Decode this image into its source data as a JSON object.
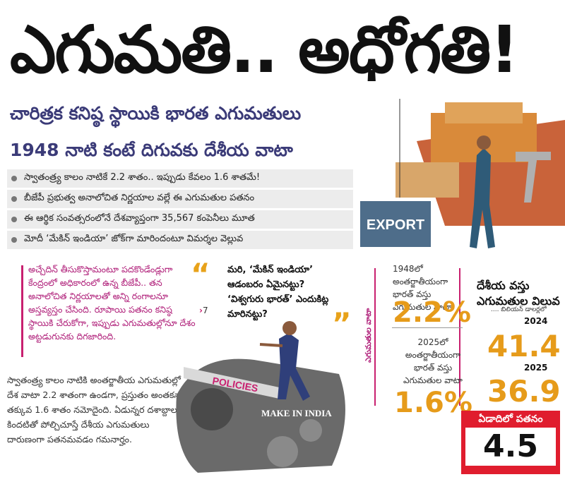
{
  "headline": "ఎగుమతి.. అధోగతి!",
  "subheads": [
    "చారిత్రక కనిష్ఠ స్థాయికి భారత ఎగుమతులు",
    "1948 నాటి కంటే దిగువకు దేశీయ వాటా"
  ],
  "bullets": [
    "స్వాతంత్ర్య కాలం నాటికే 2.2 శాతం.. ఇప్పుడు కేవలం 1.6 శాతమే!",
    "బీజేపీ ప్రభుత్వ అనాలోచిత నిర్ణయాల వల్లే ఈ ఎగుమతుల పతనం",
    "ఈ ఆర్థిక సంవత్సరంలోనే దేశవ్యాప్తంగా 35,567 కంపెనీలు మూత",
    "మోదీ ‘మేకిన్ ఇండియా’ జోక్‌గా మారిందంటూ విమర్శల వెల్లువ"
  ],
  "pink_paragraph": "అచ్చేదిన్ తీసుకొస్తామంటూ పదకొండేండ్లుగా కేంద్రంలో అధికారంలో ఉన్న బీజేపీ.. తన అనాలోచిత నిర్ణయాలతో అన్ని రంగాలనూ అస్తవ్యస్తం చేసింది. రూపాయి పతనం కనిష్ఠ స్థాయికి చేరుకోగా, ఇప్పుడు ఎగుమతుల్లోనూ దేశం అట్టడుగునకు దిగజారింది.",
  "page_ref": "7",
  "quote": "మరి, ‘మేకిన్ ఇండియా’ ఆడంబరం ఏమైనట్టు? ‘విశ్వగురు భారత్’ ఎందుకిట్ల మారినట్టు?",
  "body_text": "స్వాతంత్ర్య కాలం నాటికి అంతర్జాతీయ ఎగుమతుల్లో దేశ వాటా 2.2 శాతంగా ఉండగా, ప్రస్తుతం అంతకన్నా తక్కువ 1.6 శాతం నమోదైంది. ఏడున్నర దశాబ్దాల కిందటితో పోల్చిచూస్తే దేశీయ ఎగుమతులు దారుణంగా పతనమవడం గమనార్హం.",
  "illustration_labels": {
    "export": "EXPORT",
    "policies": "POLICIES",
    "make_in_india": "MAKE IN INDIA"
  },
  "stats": {
    "vertical_label": "ఎగుమతుల వాటా",
    "label_1948": "1948లో అంతర్జాతీయంగా భారత్ వస్తు ఎగుమతుల వాటా",
    "value_1948": "2.2%",
    "label_2025": "2025లో అంతర్జాతీయంగా భారత్ వస్తు ఎగుమతుల వాటా",
    "value_2025": "1.6%",
    "value_heading": "దేశీయ వస్తు ఎగుమతుల విలువ",
    "value_unit": ".... బిలియన్ డాలర్లలో",
    "year_2024": "2024",
    "amount_2024": "41.4",
    "year_2025": "2025",
    "amount_2025": "36.9",
    "fall_label": "ఏడాదిలో పతనం",
    "fall_value": "4.5"
  },
  "colors": {
    "accent_orange": "#e69b1a",
    "magenta": "#c8206f",
    "red_box": "#e01d2e",
    "subhead_blue": "#3b3b78"
  }
}
